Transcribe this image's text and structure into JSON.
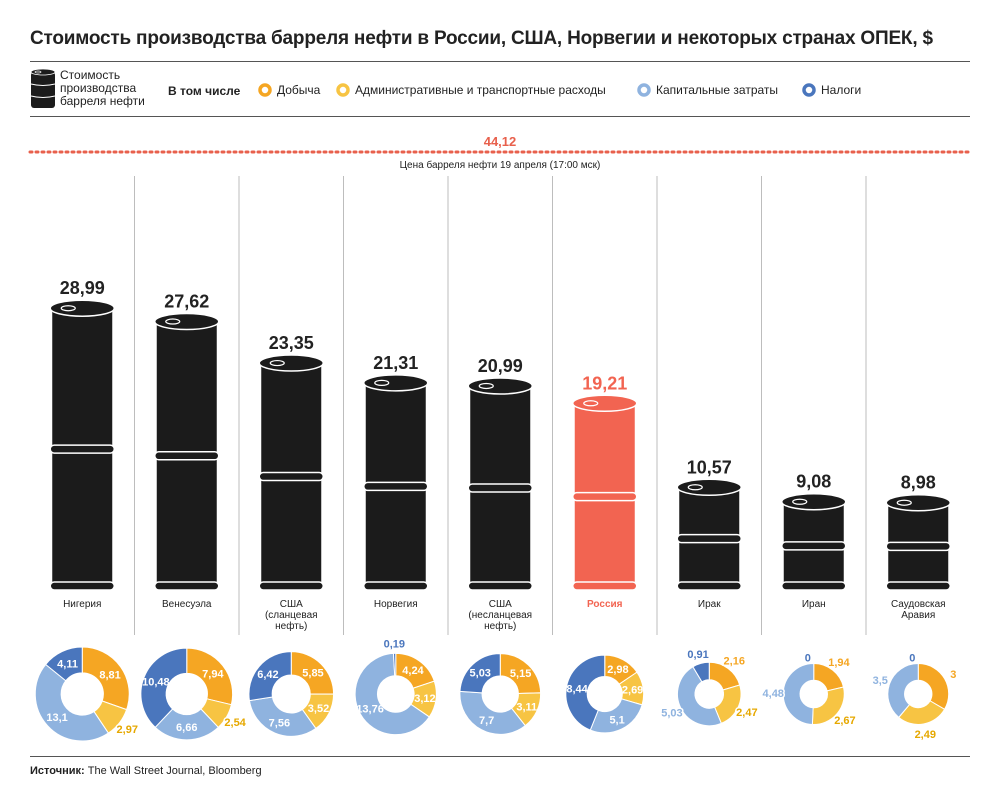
{
  "chart_data": {
    "type": "bar",
    "title": "Стоимость производства барреля нефти в России, США, Норвегии и некоторых странах ОПЕК, $",
    "bar_style": "oil-barrel",
    "legend": {
      "barrel_label": "Стоимость производства барреля нефти",
      "including_label": "В том числе",
      "components": [
        {
          "name": "Добыча",
          "color": "#f5a623"
        },
        {
          "name": "Административные и транспортные расходы",
          "color": "#f7c443"
        },
        {
          "name": "Капитальные затраты",
          "color": "#8fb3df"
        },
        {
          "name": "Налоги",
          "color": "#4a76bd"
        }
      ]
    },
    "reference_line": {
      "value": 44.12,
      "value_label": "44,12",
      "label": "Цена барреля нефти 19 апреля (17:00 мск)",
      "color": "#e8604c"
    },
    "ylim": [
      0,
      44.12
    ],
    "categories": [
      "Нигерия",
      "Венесуэла",
      "США (сланцевая нефть)",
      "Норвегия",
      "США (несланцевая нефть)",
      "Россия",
      "Ирак",
      "Иран",
      "Саудовская Аравия"
    ],
    "category_lines": [
      [
        "Нигерия"
      ],
      [
        "Венесуэла"
      ],
      [
        "США",
        "(сланцевая",
        "нефть)"
      ],
      [
        "Норвегия"
      ],
      [
        "США",
        "(несланцевая",
        "нефть)"
      ],
      [
        "Россия"
      ],
      [
        "Ирак"
      ],
      [
        "Иран"
      ],
      [
        "Саудовская",
        "Аравия"
      ]
    ],
    "values": [
      28.99,
      27.62,
      23.35,
      21.31,
      20.99,
      19.21,
      10.57,
      9.08,
      8.98
    ],
    "value_labels": [
      "28,99",
      "27,62",
      "23,35",
      "21,31",
      "20,99",
      "19,21",
      "10,57",
      "9,08",
      "8,98"
    ],
    "highlight": {
      "category": "Россия",
      "color": "#f26451"
    },
    "barrel_color": "#1b1b1b",
    "breakdown": [
      {
        "category": "Нигерия",
        "values": [
          8.81,
          2.97,
          13.1,
          4.11
        ],
        "labels": [
          "8,81",
          "2,97",
          "13,1",
          "4,11"
        ]
      },
      {
        "category": "Венесуэла",
        "values": [
          7.94,
          2.54,
          6.66,
          10.48
        ],
        "labels": [
          "7,94",
          "2,54",
          "6,66",
          "10,48"
        ]
      },
      {
        "category": "США (сланцевая нефть)",
        "values": [
          5.85,
          3.52,
          7.56,
          6.42
        ],
        "labels": [
          "5,85",
          "3,52",
          "7,56",
          "6,42"
        ]
      },
      {
        "category": "Норвегия",
        "values": [
          4.24,
          3.12,
          13.76,
          0.19
        ],
        "labels": [
          "4,24",
          "3,12",
          "13,76",
          "0,19"
        ]
      },
      {
        "category": "США (несланцевая нефть)",
        "values": [
          5.15,
          3.11,
          7.7,
          5.03
        ],
        "labels": [
          "5,15",
          "3,11",
          "7,7",
          "5,03"
        ]
      },
      {
        "category": "Россия",
        "values": [
          2.98,
          2.69,
          5.1,
          8.44
        ],
        "labels": [
          "2,98",
          "2,69",
          "5,1",
          "8,44"
        ]
      },
      {
        "category": "Ирак",
        "values": [
          2.16,
          2.47,
          5.03,
          0.91
        ],
        "labels": [
          "2,16",
          "2,47",
          "5,03",
          "0,91"
        ]
      },
      {
        "category": "Иран",
        "values": [
          1.94,
          2.67,
          4.48,
          0
        ],
        "labels": [
          "1,94",
          "2,67",
          "4,48",
          "0"
        ]
      },
      {
        "category": "Саудовская Аравия",
        "values": [
          3,
          2.49,
          3.5,
          0
        ],
        "labels": [
          "3",
          "2,49",
          "3,5",
          "0"
        ]
      }
    ]
  },
  "source": {
    "label": "Источник:",
    "text": "The Wall Street Journal, Bloomberg"
  }
}
